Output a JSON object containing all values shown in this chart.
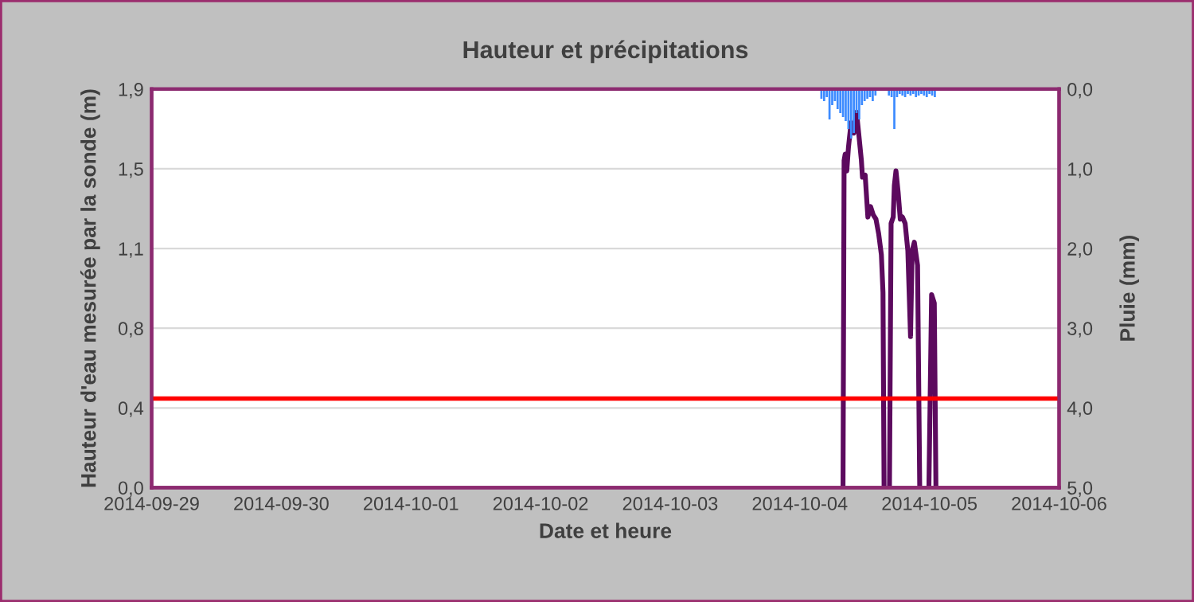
{
  "chart_data": {
    "type": "line",
    "title": "Hauteur et précipitations",
    "xlabel": "Date et heure",
    "ylabel": "Hauteur d'eau mesurée par la sonde (m)",
    "y2label": "Pluie (mm)",
    "xlim": [
      "2014-09-29",
      "2014-10-06"
    ],
    "xticks": [
      {
        "value": "2014-09-29",
        "label": "2014-09-29"
      },
      {
        "value": "2014-09-30",
        "label": "2014-09-30"
      },
      {
        "value": "2014-10-01",
        "label": "2014-10-01"
      },
      {
        "value": "2014-10-02",
        "label": "2014-10-02"
      },
      {
        "value": "2014-10-03",
        "label": "2014-10-03"
      },
      {
        "value": "2014-10-04",
        "label": "2014-10-04"
      },
      {
        "value": "2014-10-05",
        "label": "2014-10-05"
      },
      {
        "value": "2014-10-06",
        "label": "2014-10-06"
      }
    ],
    "ylim": [
      0,
      1.9
    ],
    "yticks": [
      {
        "value": 0,
        "label": "0,0"
      },
      {
        "value": 0.38,
        "label": "0,4"
      },
      {
        "value": 0.76,
        "label": "0,8"
      },
      {
        "value": 1.14,
        "label": "1,1"
      },
      {
        "value": 1.52,
        "label": "1,5"
      },
      {
        "value": 1.9,
        "label": "1,9"
      }
    ],
    "y2lim": [
      5,
      0
    ],
    "y2ticks": [
      {
        "value": 0,
        "label": "0,0"
      },
      {
        "value": 1,
        "label": "1,0"
      },
      {
        "value": 2,
        "label": "2,0"
      },
      {
        "value": 3,
        "label": "3,0"
      },
      {
        "value": 4,
        "label": "4,0"
      },
      {
        "value": 5,
        "label": "5,0"
      }
    ],
    "grid": "y",
    "legend": false,
    "marker": "none",
    "line_style": "solid",
    "ref_lines": [
      {
        "axis": "y",
        "value": 0.425,
        "color": "#ff0000"
      }
    ],
    "series": [
      {
        "type": "bar",
        "axis": "y2",
        "color": "#3d8bff",
        "x": [
          "2014-10-04T04:00",
          "2014-10-04T04:30",
          "2014-10-04T05:00",
          "2014-10-04T05:30",
          "2014-10-04T06:00",
          "2014-10-04T06:30",
          "2014-10-04T07:00",
          "2014-10-04T07:30",
          "2014-10-04T08:00",
          "2014-10-04T08:30",
          "2014-10-04T09:00",
          "2014-10-04T09:30",
          "2014-10-04T10:00",
          "2014-10-04T10:30",
          "2014-10-04T11:00",
          "2014-10-04T11:30",
          "2014-10-04T12:00",
          "2014-10-04T12:30",
          "2014-10-04T13:00",
          "2014-10-04T13:30",
          "2014-10-04T14:00",
          "2014-10-04T16:30",
          "2014-10-04T17:00",
          "2014-10-04T17:30",
          "2014-10-04T18:00",
          "2014-10-04T18:30",
          "2014-10-04T19:00",
          "2014-10-04T19:30",
          "2014-10-04T20:00",
          "2014-10-04T20:30",
          "2014-10-04T21:00",
          "2014-10-04T21:30",
          "2014-10-04T22:00",
          "2014-10-04T22:30",
          "2014-10-04T23:00",
          "2014-10-04T23:30",
          "2014-10-05T00:00",
          "2014-10-05T00:30",
          "2014-10-05T01:00"
        ],
        "values": [
          0.12,
          0.15,
          0.1,
          0.38,
          0.2,
          0.15,
          0.25,
          0.3,
          0.35,
          0.4,
          0.5,
          0.62,
          0.55,
          0.3,
          0.38,
          0.2,
          0.15,
          0.12,
          0.1,
          0.15,
          0.08,
          0.08,
          0.1,
          0.5,
          0.1,
          0.06,
          0.08,
          0.1,
          0.06,
          0.08,
          0.06,
          0.1,
          0.08,
          0.06,
          0.08,
          0.1,
          0.06,
          0.08,
          0.1
        ]
      },
      {
        "color": "#5c0a5e",
        "x": [
          "2014-10-04T08:00",
          "2014-10-04T08:12",
          "2014-10-04T08:24",
          "2014-10-04T08:42",
          "2014-10-04T09:00",
          "2014-10-04T09:12",
          "2014-10-04T09:30",
          "2014-10-04T10:00",
          "2014-10-04T10:30",
          "2014-10-04T10:54",
          "2014-10-04T11:24",
          "2014-10-04T11:36",
          "2014-10-04T12:06",
          "2014-10-04T12:36",
          "2014-10-04T13:06",
          "2014-10-04T13:36",
          "2014-10-04T14:06",
          "2014-10-04T14:36",
          "2014-10-04T15:06",
          "2014-10-04T15:24",
          "2014-10-04T15:36",
          "2014-10-04T16:00",
          "2014-10-04T16:36",
          "2014-10-04T16:54",
          "2014-10-04T17:18",
          "2014-10-04T17:30",
          "2014-10-04T17:48",
          "2014-10-04T18:12",
          "2014-10-04T18:36",
          "2014-10-04T19:00",
          "2014-10-04T19:30",
          "2014-10-04T20:00",
          "2014-10-04T20:30",
          "2014-10-04T20:48",
          "2014-10-04T21:12",
          "2014-10-04T21:48",
          "2014-10-04T22:12",
          "2014-10-04T23:00",
          "2014-10-04T23:54",
          "2014-10-05T00:24",
          "2014-10-05T00:54",
          "2014-10-05T01:12"
        ],
        "values": [
          0,
          1.56,
          1.59,
          1.51,
          1.62,
          1.67,
          1.74,
          1.69,
          1.79,
          1.69,
          1.56,
          1.48,
          1.49,
          1.29,
          1.34,
          1.3,
          1.28,
          1.21,
          1.11,
          0.93,
          0,
          null,
          0,
          1.26,
          1.29,
          1.44,
          1.51,
          1.41,
          1.28,
          1.29,
          1.26,
          1.13,
          0.72,
          1.13,
          1.17,
          1.06,
          0,
          null,
          0,
          0.92,
          0.88,
          0
        ]
      }
    ]
  }
}
